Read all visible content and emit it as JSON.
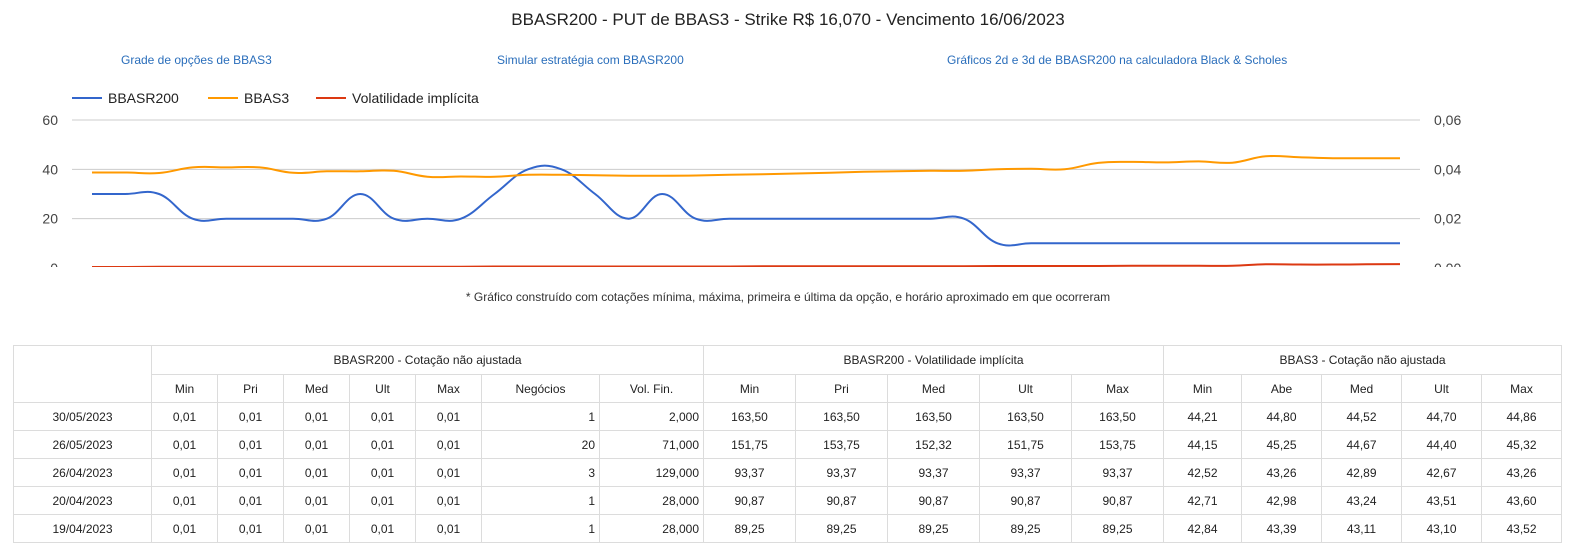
{
  "page": {
    "title": "BBASR200 - PUT de BBAS3 - Strike R$ 16,070 - Vencimento 16/06/2023",
    "links": [
      "Grade de opções de BBAS3",
      "Simular estratégia com BBASR200",
      "Gráficos 2d e 3d de BBASR200 na calculadora Black & Scholes"
    ],
    "note": "* Gráfico construído com cotações mínima, máxima, primeira e última da opção, e horário aproximado em que ocorreram"
  },
  "chart_data": {
    "type": "line",
    "legend_position": "top-left",
    "grid": true,
    "y_left": {
      "ticks": [
        "60",
        "40",
        "20",
        "0"
      ],
      "range": [
        0,
        60
      ]
    },
    "y_right": {
      "ticks": [
        "0,06",
        "0,04",
        "0,02",
        "0,00"
      ],
      "range": [
        0,
        0.06
      ]
    },
    "series": [
      {
        "name": "BBASR200",
        "color": "#3366cc",
        "axis": "left",
        "values": [
          30,
          30,
          30,
          20,
          20,
          20,
          20,
          20,
          30,
          20,
          20,
          20,
          30,
          40,
          40,
          30,
          20,
          30,
          20,
          20,
          20,
          20,
          20,
          20,
          20,
          20,
          20,
          10,
          10,
          10,
          10,
          10,
          10,
          10,
          10,
          10,
          10,
          10,
          10,
          10
        ]
      },
      {
        "name": "BBAS3",
        "color": "#ff9900",
        "axis": "left",
        "values": [
          38.7,
          38.7,
          38.5,
          40.8,
          40.8,
          40.8,
          38.6,
          39.2,
          39.2,
          39.4,
          37.0,
          37.1,
          37.0,
          37.8,
          37.8,
          37.6,
          37.4,
          37.4,
          37.5,
          37.8,
          38.0,
          38.3,
          38.6,
          39.0,
          39.2,
          39.4,
          39.4,
          40.0,
          40.2,
          40.0,
          42.6,
          43.0,
          42.8,
          43.2,
          42.7,
          45.3,
          44.9,
          44.5,
          44.5,
          44.5
        ]
      },
      {
        "name": "Volatilidade implícita",
        "color": "#dc3912",
        "axis": "left",
        "values": [
          0.4,
          0.4,
          0.5,
          0.5,
          0.5,
          0.5,
          0.5,
          0.5,
          0.5,
          0.5,
          0.5,
          0.5,
          0.6,
          0.6,
          0.6,
          0.6,
          0.6,
          0.6,
          0.6,
          0.6,
          0.7,
          0.7,
          0.7,
          0.7,
          0.7,
          0.7,
          0.7,
          0.8,
          0.8,
          0.8,
          0.8,
          0.9,
          0.9,
          0.9,
          0.9,
          1.5,
          1.4,
          1.4,
          1.5,
          1.6
        ]
      }
    ]
  },
  "table": {
    "group_headers": [
      "BBASR200 - Cotação não ajustada",
      "BBASR200 - Volatilidade implícita",
      "BBAS3 - Cotação não ajustada"
    ],
    "columns": [
      "Min",
      "Pri",
      "Med",
      "Ult",
      "Max",
      "Negócios",
      "Vol. Fin.",
      "Min",
      "Pri",
      "Med",
      "Ult",
      "Max",
      "Min",
      "Abe",
      "Med",
      "Ult",
      "Max"
    ],
    "rows": [
      {
        "date": "30/05/2023",
        "cells": [
          "0,01",
          "0,01",
          "0,01",
          "0,01",
          "0,01",
          "1",
          "2,000",
          "163,50",
          "163,50",
          "163,50",
          "163,50",
          "163,50",
          "44,21",
          "44,80",
          "44,52",
          "44,70",
          "44,86"
        ]
      },
      {
        "date": "26/05/2023",
        "cells": [
          "0,01",
          "0,01",
          "0,01",
          "0,01",
          "0,01",
          "20",
          "71,000",
          "151,75",
          "153,75",
          "152,32",
          "151,75",
          "153,75",
          "44,15",
          "45,25",
          "44,67",
          "44,40",
          "45,32"
        ]
      },
      {
        "date": "26/04/2023",
        "cells": [
          "0,01",
          "0,01",
          "0,01",
          "0,01",
          "0,01",
          "3",
          "129,000",
          "93,37",
          "93,37",
          "93,37",
          "93,37",
          "93,37",
          "42,52",
          "43,26",
          "42,89",
          "42,67",
          "43,26"
        ]
      },
      {
        "date": "20/04/2023",
        "cells": [
          "0,01",
          "0,01",
          "0,01",
          "0,01",
          "0,01",
          "1",
          "28,000",
          "90,87",
          "90,87",
          "90,87",
          "90,87",
          "90,87",
          "42,71",
          "42,98",
          "43,24",
          "43,51",
          "43,60"
        ]
      },
      {
        "date": "19/04/2023",
        "cells": [
          "0,01",
          "0,01",
          "0,01",
          "0,01",
          "0,01",
          "1",
          "28,000",
          "89,25",
          "89,25",
          "89,25",
          "89,25",
          "89,25",
          "42,84",
          "43,39",
          "43,11",
          "43,10",
          "43,52"
        ]
      }
    ]
  }
}
